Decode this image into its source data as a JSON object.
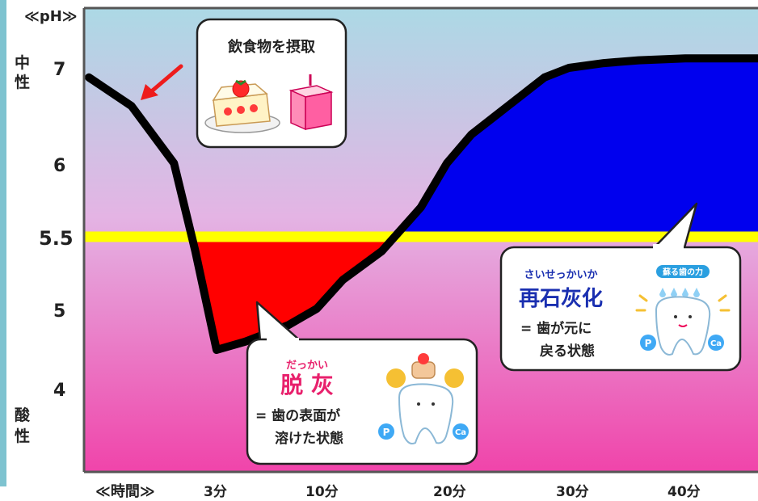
{
  "chart_data": {
    "type": "area",
    "y_unit_label": "≪pH≫",
    "x_unit_label": "≪時間≫",
    "y_ticks": [
      "7",
      "6",
      "5.5",
      "5",
      "4"
    ],
    "x_ticks": [
      "3分",
      "10分",
      "20分",
      "30分",
      "40分"
    ],
    "y_side_labels": {
      "top": "中\n性",
      "bottom": "酸\n性"
    },
    "threshold": 5.5,
    "ylim": [
      3.5,
      7.4
    ],
    "series": [
      {
        "x": [
          0,
          1,
          2,
          2.5,
          3,
          5,
          8,
          10,
          12,
          15,
          18,
          20,
          22,
          24,
          25,
          26,
          27,
          28,
          29,
          30,
          33,
          36,
          40,
          45
        ],
        "values": [
          6.9,
          6.6,
          6.0,
          5.4,
          4.5,
          4.6,
          4.8,
          5.0,
          5.2,
          5.4,
          5.7,
          6.0,
          6.3,
          6.5,
          6.6,
          6.7,
          6.8,
          6.9,
          6.95,
          7.0,
          7.05,
          7.08,
          7.1,
          7.1
        ]
      }
    ],
    "colors": {
      "demineralization_area": "#ff0000",
      "remineralization_area": "#0000ee",
      "threshold_line": "#ffff00",
      "curve": "#000000",
      "bg_top": "#acd9e5",
      "bg_bottom": "#f044aa"
    }
  },
  "callouts": {
    "intake": {
      "title": "飲食物を摂取"
    },
    "demineralization": {
      "ruby": "だっかい",
      "title": "脱 灰",
      "desc_line1": "= 歯の表面が",
      "desc_line2": "溶けた状態",
      "ion_p": "P",
      "ion_ca": "Ca"
    },
    "remineralization": {
      "ruby": "さいせっかいか",
      "title": "再石灰化",
      "desc_line1": "= 歯が元に",
      "desc_line2": "戻る状態",
      "badge": "蘇る歯の力",
      "ion_p": "P",
      "ion_ca": "Ca"
    }
  }
}
